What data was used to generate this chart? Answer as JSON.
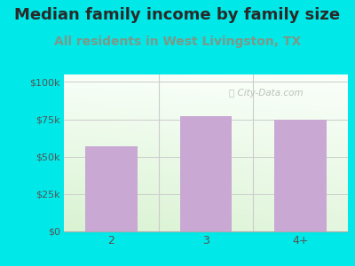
{
  "title": "Median family income by family size",
  "subtitle": "All residents in West Livingston, TX",
  "categories": [
    "2",
    "3",
    "4+"
  ],
  "values": [
    57000,
    77000,
    75000
  ],
  "bar_color": "#c9a8d4",
  "title_color": "#2a2a2a",
  "subtitle_color": "#7a9a8a",
  "bg_color": "#00e8e8",
  "yticks": [
    0,
    25000,
    50000,
    75000,
    100000
  ],
  "ytick_labels": [
    "$0",
    "$25k",
    "$50k",
    "$75k",
    "$100k"
  ],
  "ylim": [
    0,
    105000
  ],
  "watermark": "City-Data.com",
  "title_fontsize": 13,
  "subtitle_fontsize": 10
}
